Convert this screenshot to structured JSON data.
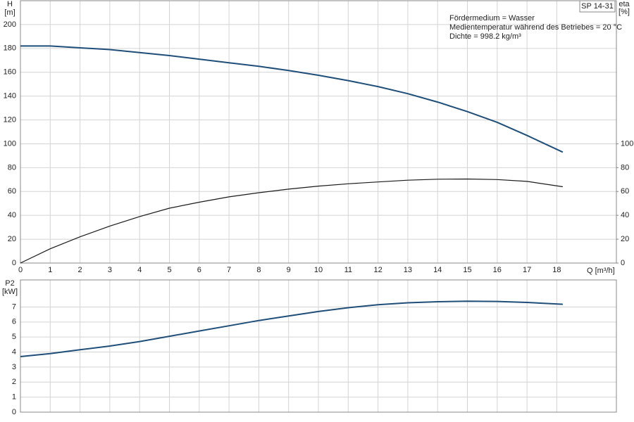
{
  "chart_data": [
    {
      "type": "line",
      "title": "SP 14-31",
      "annotations": [
        "Fördermedium = Wasser",
        "Medientemperatur während des Betriebes = 20 °C",
        "Dichte = 998.2 kg/m³"
      ],
      "xlabel": "Q [m³/h]",
      "ylabel": "H",
      "yunit": "[m]",
      "y2label": "eta",
      "y2unit": "[%]",
      "x": [
        0,
        1,
        2,
        3,
        4,
        5,
        6,
        7,
        8,
        9,
        10,
        11,
        12,
        13,
        14,
        15,
        16,
        17,
        18.2
      ],
      "series": [
        {
          "name": "H",
          "color": "#1f4e79",
          "axis": "y",
          "values": [
            182,
            182,
            180.5,
            179,
            176.5,
            174,
            171,
            168,
            165,
            161.5,
            157.5,
            153,
            148,
            142,
            135,
            127,
            118,
            107,
            93
          ]
        },
        {
          "name": "eta",
          "color": "#1a1a1a",
          "axis": "y2",
          "values": [
            0,
            12,
            22,
            31,
            39,
            46,
            51,
            55.5,
            59,
            62,
            64.5,
            66.5,
            68,
            69.5,
            70.3,
            70.5,
            70,
            68.5,
            64
          ]
        }
      ],
      "xlim": [
        0,
        20
      ],
      "xticks": [
        0,
        1,
        2,
        3,
        4,
        5,
        6,
        7,
        8,
        9,
        10,
        11,
        12,
        13,
        14,
        15,
        16,
        17,
        18
      ],
      "ylim": [
        0,
        220
      ],
      "yticks": [
        0,
        20,
        40,
        60,
        80,
        100,
        120,
        140,
        160,
        180,
        200
      ],
      "y2lim": [
        0,
        220
      ],
      "y2ticks": [
        0,
        20,
        40,
        60,
        80,
        100
      ],
      "grid": true
    },
    {
      "type": "line",
      "ylabel": "P2",
      "yunit": "[kW]",
      "x": [
        0,
        1,
        2,
        3,
        4,
        5,
        6,
        7,
        8,
        9,
        10,
        11,
        12,
        13,
        14,
        15,
        16,
        17,
        18.2
      ],
      "series": [
        {
          "name": "P2",
          "color": "#1f4e79",
          "axis": "y",
          "values": [
            3.7,
            3.9,
            4.15,
            4.4,
            4.7,
            5.05,
            5.4,
            5.75,
            6.1,
            6.4,
            6.7,
            6.95,
            7.15,
            7.28,
            7.35,
            7.38,
            7.37,
            7.3,
            7.18
          ]
        }
      ],
      "xlim": [
        0,
        20
      ],
      "xticks": [
        0,
        1,
        2,
        3,
        4,
        5,
        6,
        7,
        8,
        9,
        10,
        11,
        12,
        13,
        14,
        15,
        16,
        17,
        18
      ],
      "ylim": [
        0,
        8.8
      ],
      "yticks": [
        0,
        1,
        2,
        3,
        4,
        5,
        6,
        7
      ],
      "grid": true
    }
  ]
}
